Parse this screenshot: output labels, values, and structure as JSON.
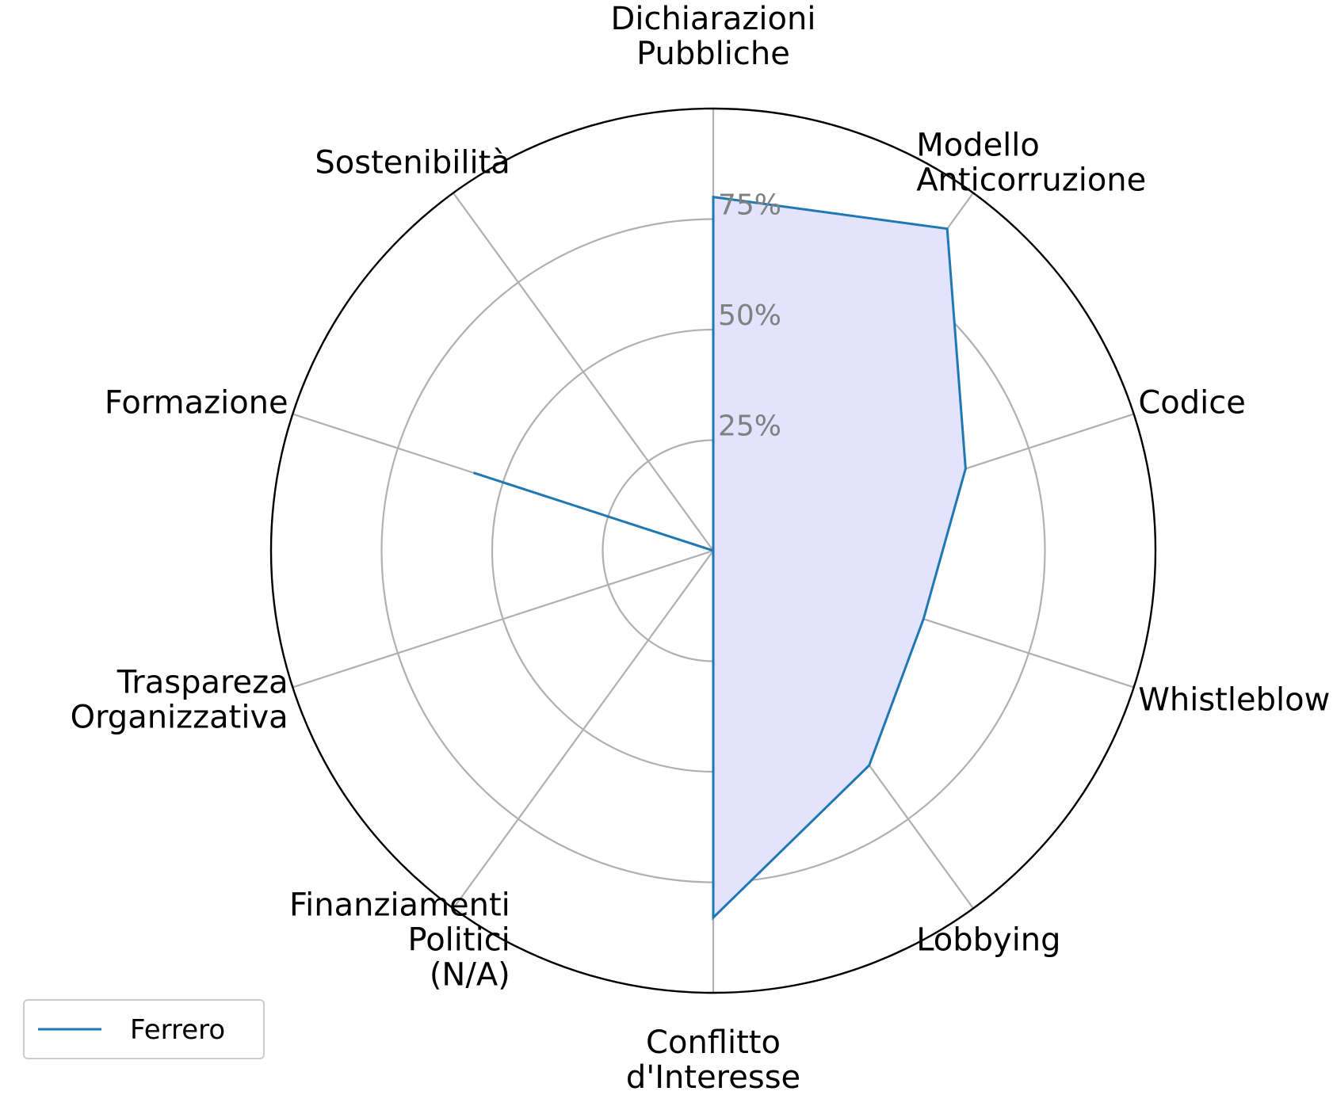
{
  "chart_data": {
    "type": "radar",
    "title": "",
    "categories": [
      [
        "Dichiarazioni",
        "Pubbliche"
      ],
      [
        "Modello",
        "Anticorruzione"
      ],
      [
        "Codice"
      ],
      [
        "Whistleblowing"
      ],
      [
        "Lobbying"
      ],
      [
        "Conflitto",
        "d'Interesse"
      ],
      [
        "Finanziamenti",
        "Politici",
        "(N/A)"
      ],
      [
        "Traspareza",
        "Organizzativa"
      ],
      [
        "Formazione"
      ],
      [
        "Sostenibilità"
      ]
    ],
    "series": [
      {
        "name": "Ferrero",
        "values": [
          80,
          90,
          60,
          50,
          60,
          83,
          0,
          0,
          57,
          0
        ],
        "color": "#1f77b4",
        "fill": "#e3e3fd"
      }
    ],
    "rlim": [
      0,
      100
    ],
    "rticks": [
      25,
      50,
      75,
      100
    ],
    "rtick_labels": [
      "25%",
      "50%",
      "75%"
    ],
    "grid": true,
    "legend": "lower-left",
    "colors": {
      "grid": "#b0b0b0",
      "outer_ring": "#000000",
      "tick_labels": "#808080"
    }
  }
}
